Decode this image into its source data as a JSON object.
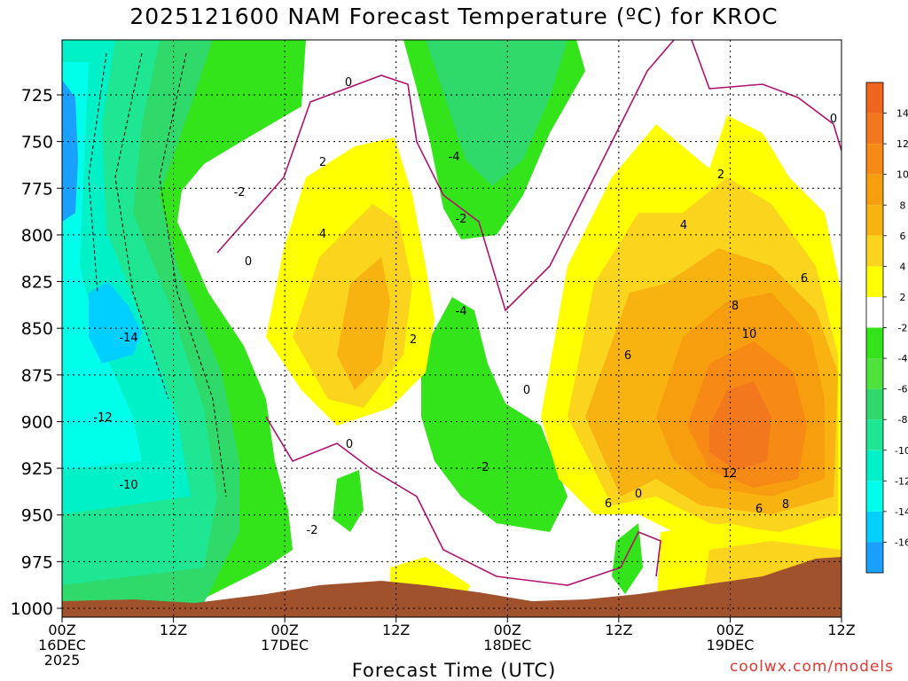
{
  "chart_data": {
    "type": "contour",
    "title": "2025121600 NAM Forecast Temperature (ºC) for KROC",
    "xlabel": "Forecast Time (UTC)",
    "ylabel": "",
    "credit": "coolwx.com/models",
    "y_ticks": [
      725,
      750,
      775,
      800,
      825,
      850,
      875,
      900,
      925,
      950,
      975,
      1000
    ],
    "ylim": [
      1000,
      700
    ],
    "x_ticks": [
      {
        "hour": 0,
        "line1": "00Z",
        "line2": "16DEC",
        "line3": "2025"
      },
      {
        "hour": 12,
        "line1": "12Z",
        "line2": "",
        "line3": ""
      },
      {
        "hour": 24,
        "line1": "00Z",
        "line2": "17DEC",
        "line3": ""
      },
      {
        "hour": 36,
        "line1": "12Z",
        "line2": "",
        "line3": ""
      },
      {
        "hour": 48,
        "line1": "00Z",
        "line2": "18DEC",
        "line3": ""
      },
      {
        "hour": 60,
        "line1": "12Z",
        "line2": "",
        "line3": ""
      },
      {
        "hour": 72,
        "line1": "00Z",
        "line2": "19DEC",
        "line3": ""
      },
      {
        "hour": 84,
        "line1": "12Z",
        "line2": "",
        "line3": ""
      }
    ],
    "xlim": [
      0,
      84
    ],
    "colorbar": {
      "labels": [
        "14",
        "12",
        "10",
        "8",
        "6",
        "4",
        "2",
        "-2",
        "-4",
        "-6",
        "-8",
        "-10",
        "-12",
        "-14",
        "-16"
      ],
      "levels": [
        16,
        14,
        12,
        10,
        8,
        6,
        4,
        2,
        -2,
        -4,
        -6,
        -8,
        -10,
        -12,
        -14,
        -16,
        -18
      ],
      "colors": [
        "#f0641e",
        "#f2781e",
        "#f68a14",
        "#f79e0e",
        "#f8b310",
        "#fbd41e",
        "#ffff00",
        "#ffffff",
        "#33e41a",
        "#50e23c",
        "#2fd96a",
        "#1ee693",
        "#00f0c8",
        "#00ffea",
        "#00cfff",
        "#1aa0ff"
      ]
    },
    "contour_labels": [
      "0",
      "-2",
      "-4",
      "-10",
      "-12",
      "-14",
      "2",
      "4",
      "6",
      "8",
      "10",
      "12"
    ],
    "grid": true
  }
}
